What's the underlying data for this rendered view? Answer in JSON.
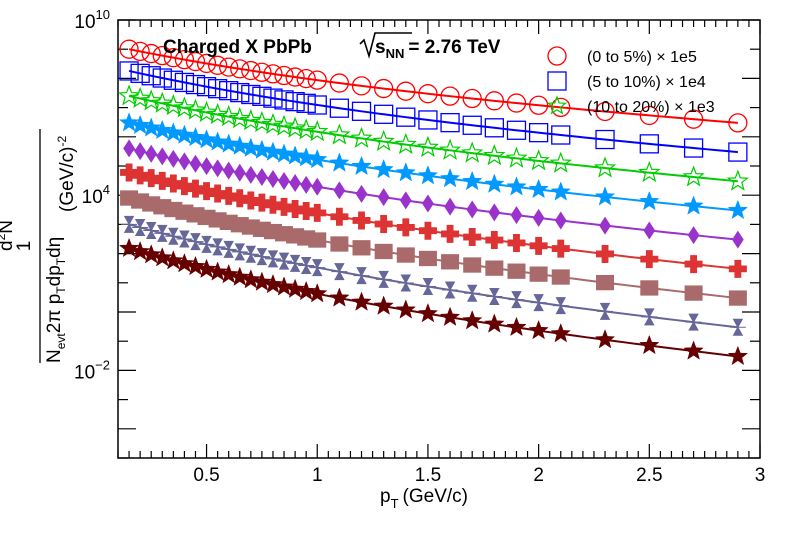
{
  "chart_data": {
    "type": "scatter",
    "title": "Charged X PbPb",
    "energy_label": "= 2.76 TeV",
    "energy_sqrt_symbol": "s",
    "energy_subscript": "NN",
    "xlabel": "p",
    "xlabel_sub": "T",
    "xlabel_unit": "(GeV/c)",
    "ylabel_numerator": "1",
    "ylabel_parts": {
      "d2N_d": "d",
      "d2N_sup": "2",
      "d2N_N": "N",
      "den_N": "N",
      "den_evt": "evt",
      "den_rest": "2π p",
      "den_T1": "T",
      "den_dp": "dp",
      "den_T2": "T",
      "den_deta": "dη",
      "unit": "(GeV/c)",
      "unit_sup": "-2"
    },
    "x_scale": "linear",
    "y_scale": "log",
    "xlim": [
      0.1,
      3.0
    ],
    "ylim": [
      1e-05,
      10000000000
    ],
    "x_ticks": [
      {
        "value": 0.5,
        "label": "0.5"
      },
      {
        "value": 1.0,
        "label": "1"
      },
      {
        "value": 1.5,
        "label": "1.5"
      },
      {
        "value": 2.0,
        "label": "2"
      },
      {
        "value": 2.5,
        "label": "2.5"
      },
      {
        "value": 3.0,
        "label": "3"
      }
    ],
    "y_tick_labels": [
      {
        "value": 10000000000,
        "base": "10",
        "exp": "10"
      },
      {
        "value": 10000,
        "base": "10",
        "exp": "4"
      },
      {
        "value": 0.01,
        "base": "10",
        "exp": "−2"
      }
    ],
    "legend_placement": "top-right",
    "legend": [
      {
        "label": "(0 to 5%) × 1e5",
        "marker": "open-circle",
        "color": "#ff0000"
      },
      {
        "label": "(5 to 10%) × 1e4",
        "marker": "open-square",
        "color": "#0000ff"
      },
      {
        "label": "(10 to 20%) × 1e3",
        "marker": "open-star",
        "color": "#00cc00"
      }
    ],
    "pt": [
      0.15,
      0.2,
      0.25,
      0.3,
      0.35,
      0.4,
      0.45,
      0.5,
      0.55,
      0.6,
      0.65,
      0.7,
      0.75,
      0.8,
      0.85,
      0.9,
      0.95,
      1.0,
      1.1,
      1.2,
      1.3,
      1.4,
      1.5,
      1.6,
      1.7,
      1.8,
      1.9,
      2.0,
      2.1,
      2.3,
      2.5,
      2.7,
      2.9
    ],
    "series": [
      {
        "marker": "open-circle",
        "color": "#ff0000",
        "fit_color": "#ff0000",
        "y0": 1000000000,
        "y_end": 3000000,
        "size": 9
      },
      {
        "marker": "open-square",
        "color": "#0000ff",
        "fit_color": "#0000ff",
        "y0": 180000000,
        "y_end": 300000,
        "size": 9
      },
      {
        "marker": "open-star",
        "color": "#00cc00",
        "fit_color": "#00cc00",
        "y0": 25000000,
        "y_end": 30000,
        "size": 10
      },
      {
        "marker": "filled-star",
        "color": "#0099ff",
        "fit_color": "#0099ff",
        "y0": 3000000,
        "y_end": 3000,
        "size": 10
      },
      {
        "marker": "filled-diamond",
        "color": "#9933cc",
        "fit_color": "#9933cc",
        "y0": 400000,
        "y_end": 300,
        "size": 9
      },
      {
        "marker": "filled-cross",
        "color": "#dd3333",
        "fit_color": "#dd3333",
        "y0": 60000,
        "y_end": 30,
        "size": 9
      },
      {
        "marker": "filled-square",
        "color": "#a86a6a",
        "fit_color": "#a86a6a",
        "y0": 8000,
        "y_end": 3,
        "size": 9
      },
      {
        "marker": "hourglass",
        "color": "#666699",
        "fit_color": "#666699",
        "y0": 1000,
        "y_end": 0.3,
        "size": 8
      },
      {
        "marker": "filled-star",
        "color": "#660000",
        "fit_color": "#660000",
        "y0": 150,
        "y_end": 0.03,
        "size": 10
      }
    ]
  }
}
